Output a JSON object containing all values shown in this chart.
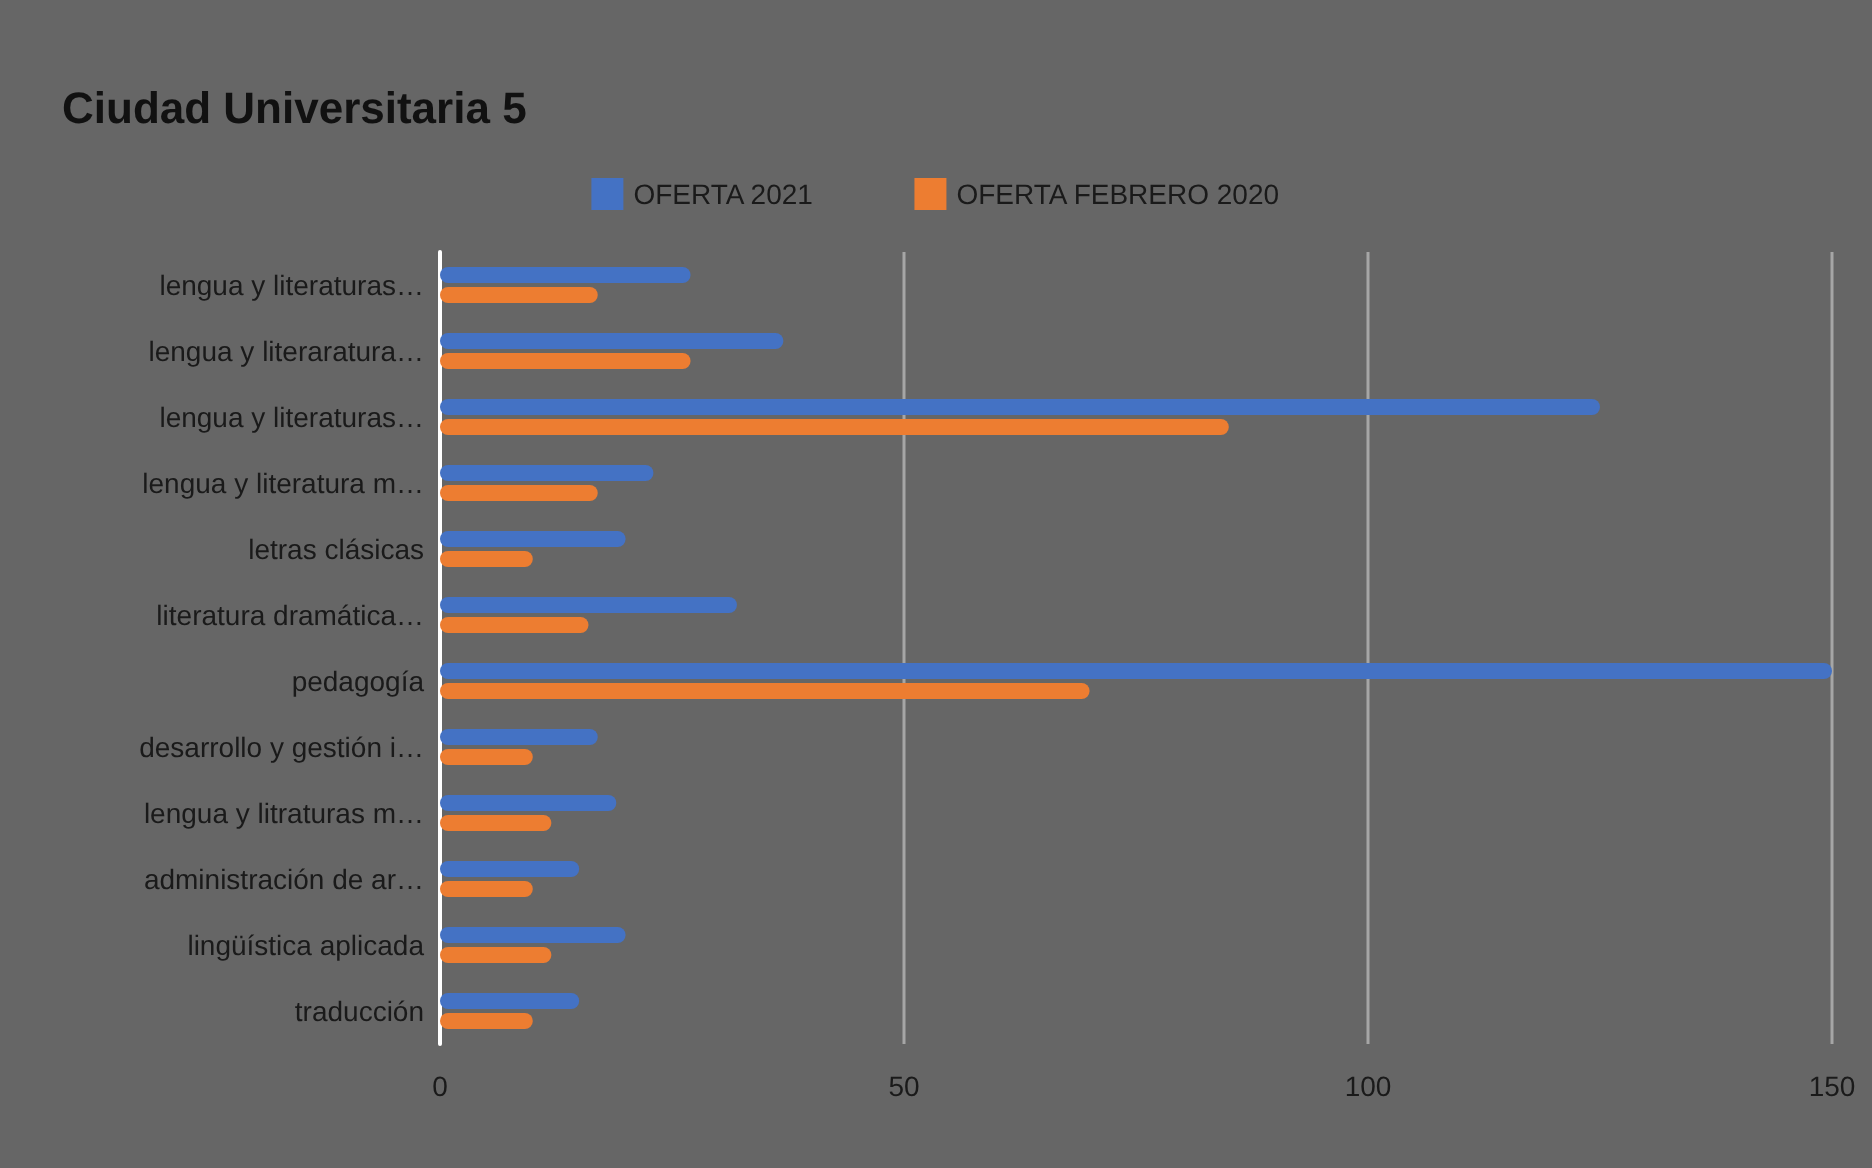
{
  "chart_data": {
    "type": "bar",
    "orientation": "horizontal",
    "title": "Ciudad Universitaria 5",
    "categories": [
      "lengua y literaturas…",
      "lengua y literaratura…",
      "lengua y literaturas…",
      "lengua y literatura m…",
      "letras clásicas",
      "literatura dramática…",
      "pedagogía",
      "desarrollo y gestión i…",
      "lengua y litraturas m…",
      "administración de ar…",
      "lingüística aplicada",
      "traducción"
    ],
    "series": [
      {
        "name": "OFERTA 2021",
        "color": "#4472c4",
        "values": [
          27,
          37,
          125,
          23,
          20,
          32,
          150,
          17,
          19,
          15,
          20,
          15
        ]
      },
      {
        "name": "OFERTA FEBRERO 2020",
        "color": "#ed7d31",
        "values": [
          17,
          27,
          85,
          17,
          10,
          16,
          70,
          10,
          12,
          10,
          12,
          10
        ]
      }
    ],
    "xlim": [
      0,
      150
    ],
    "xticks": [
      0,
      50,
      100,
      150
    ],
    "grid": "x",
    "legend": "top"
  }
}
